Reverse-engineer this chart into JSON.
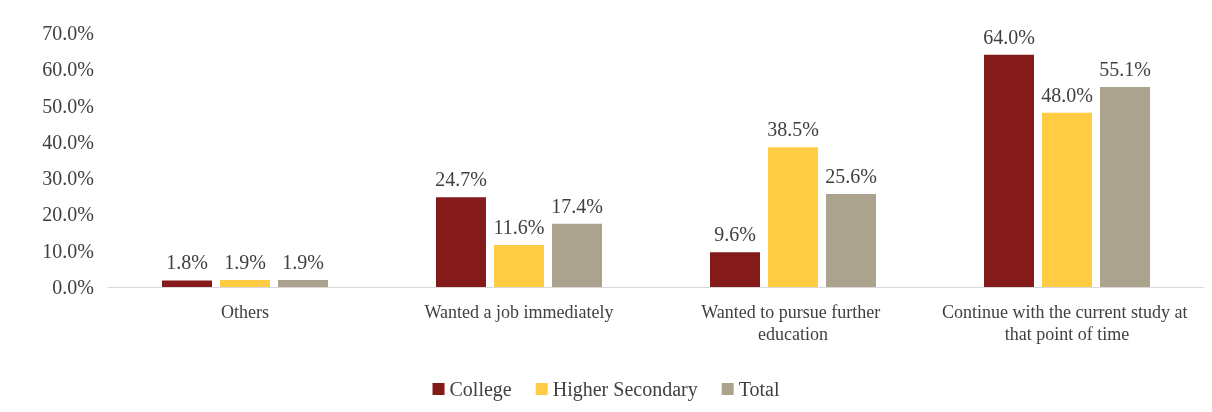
{
  "chart_data": {
    "type": "bar",
    "categories": [
      "Others",
      "Wanted a job immediately",
      "Wanted to pursue further education",
      "Continue with the current study at that point of time"
    ],
    "series": [
      {
        "name": "College",
        "color": "#841a1a",
        "values": [
          1.8,
          24.7,
          9.6,
          64.0
        ],
        "value_labels": [
          "1.8%",
          "24.7%",
          "9.6%",
          "64.0%"
        ]
      },
      {
        "name": "Higher Secondary",
        "color": "#ffcc44",
        "values": [
          1.9,
          11.6,
          38.5,
          48.0
        ],
        "value_labels": [
          "1.9%",
          "11.6%",
          "38.5%",
          "48.0%"
        ]
      },
      {
        "name": "Total",
        "color": "#aba38e",
        "values": [
          1.9,
          17.4,
          25.6,
          55.1
        ],
        "value_labels": [
          "1.9%",
          "17.4%",
          "25.6%",
          "55.1%"
        ]
      }
    ],
    "ylim": [
      0,
      70
    ],
    "yticks": [
      {
        "value": 0,
        "label": "0.0%"
      },
      {
        "value": 10,
        "label": "10.0%"
      },
      {
        "value": 20,
        "label": "20.0%"
      },
      {
        "value": 30,
        "label": "30.0%"
      },
      {
        "value": 40,
        "label": "40.0%"
      },
      {
        "value": 50,
        "label": "50.0%"
      },
      {
        "value": 60,
        "label": "60.0%"
      },
      {
        "value": 70,
        "label": "70.0%"
      }
    ],
    "grid": false,
    "legend": "bottom"
  }
}
